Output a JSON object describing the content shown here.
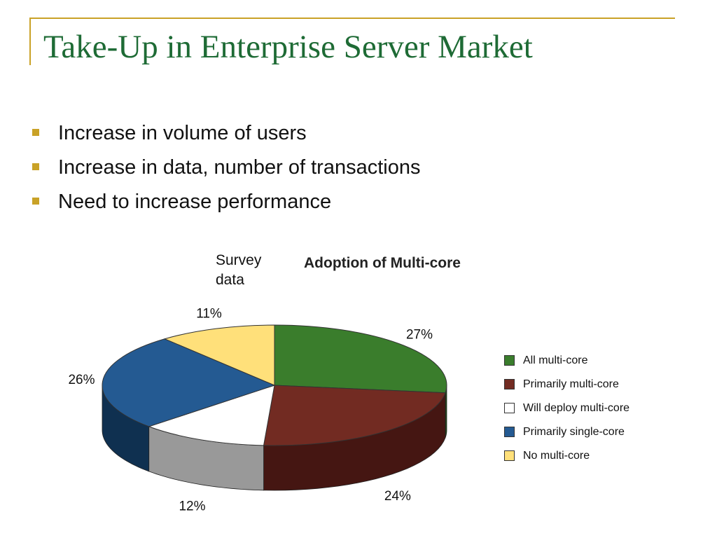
{
  "slide": {
    "title": "Take-Up in Enterprise Server Market",
    "bullets": [
      "Increase in volume of users",
      "Increase in data, number of transactions",
      "Need to increase performance"
    ],
    "note": "Survey data"
  },
  "colors": {
    "title": "#1e6b35",
    "accent": "#c9a227"
  },
  "chart_data": {
    "type": "pie",
    "title": "Adoption of Multi-core",
    "legend_position": "right",
    "unit": "%",
    "slices": [
      {
        "label": "All multi-core",
        "value": 27,
        "value_label": "27%",
        "color": "#3a7d2c",
        "side_color": "#1f4d17"
      },
      {
        "label": "Primarily multi-core",
        "value": 24,
        "value_label": "24%",
        "color": "#722b22",
        "side_color": "#451612"
      },
      {
        "label": "Will deploy multi-core",
        "value": 12,
        "value_label": "12%",
        "color": "#ffffff",
        "side_color": "#999999"
      },
      {
        "label": "Primarily single-core",
        "value": 26,
        "value_label": "26%",
        "color": "#245a92",
        "side_color": "#0f3050"
      },
      {
        "label": "No multi-core",
        "value": 11,
        "value_label": "11%",
        "color": "#ffe07a",
        "side_color": "#c9ac4f"
      }
    ]
  }
}
